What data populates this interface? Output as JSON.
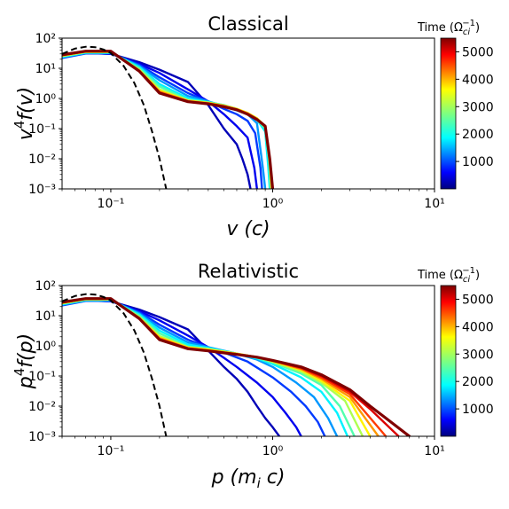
{
  "chart_data": [
    {
      "type": "line",
      "title": "Classical",
      "xlabel": "v (c)",
      "ylabel": "v⁴f(v)",
      "xscale": "log",
      "yscale": "log",
      "xlim": [
        0.05,
        10
      ],
      "ylim": [
        0.001,
        100
      ],
      "x_ticks": [
        0.1,
        1,
        10
      ],
      "x_tick_labels": [
        "10⁻¹",
        "10⁰",
        "10¹"
      ],
      "y_ticks": [
        0.001,
        0.01,
        0.1,
        1,
        10,
        100
      ],
      "y_tick_labels": [
        "10⁻³",
        "10⁻²",
        "10⁻¹",
        "10⁰",
        "10¹",
        "10²"
      ],
      "grid": false,
      "colorbar": {
        "label": "Time (Ω_ci⁻¹)",
        "colormap": "jet",
        "range": [
          0,
          5500
        ],
        "ticks": [
          1000,
          2000,
          3000,
          4000,
          5000
        ],
        "tick_labels": [
          "1000",
          "2000",
          "3000",
          "4000",
          "5000"
        ]
      },
      "reference_curve": {
        "style": "dashed",
        "color": "#000000",
        "x": [
          0.05,
          0.06,
          0.07,
          0.08,
          0.09,
          0.1,
          0.12,
          0.14,
          0.16,
          0.18,
          0.2,
          0.22
        ],
        "y": [
          30,
          45,
          52,
          50,
          42,
          32,
          12,
          3.2,
          0.6,
          0.08,
          0.01,
          0.001
        ]
      },
      "series": [
        {
          "time": 300,
          "x": [
            0.05,
            0.07,
            0.1,
            0.15,
            0.2,
            0.3,
            0.4,
            0.5,
            0.6,
            0.65,
            0.7,
            0.73
          ],
          "y": [
            25,
            33,
            30,
            16,
            9,
            3.5,
            0.6,
            0.1,
            0.03,
            0.01,
            0.003,
            0.001
          ]
        },
        {
          "time": 600,
          "x": [
            0.05,
            0.07,
            0.1,
            0.15,
            0.2,
            0.3,
            0.4,
            0.5,
            0.6,
            0.7,
            0.77,
            0.8
          ],
          "y": [
            24,
            32,
            30,
            14,
            7,
            2,
            0.8,
            0.3,
            0.12,
            0.05,
            0.005,
            0.001
          ]
        },
        {
          "time": 1000,
          "x": [
            0.05,
            0.07,
            0.1,
            0.15,
            0.2,
            0.3,
            0.4,
            0.5,
            0.6,
            0.7,
            0.78,
            0.84,
            0.86
          ],
          "y": [
            22,
            31,
            31,
            13,
            5,
            1.5,
            0.8,
            0.45,
            0.3,
            0.18,
            0.07,
            0.005,
            0.001
          ]
        },
        {
          "time": 1500,
          "x": [
            0.05,
            0.07,
            0.1,
            0.15,
            0.2,
            0.3,
            0.4,
            0.5,
            0.6,
            0.7,
            0.8,
            0.87,
            0.9
          ],
          "y": [
            23,
            32,
            32,
            12,
            4,
            1.2,
            0.8,
            0.55,
            0.4,
            0.3,
            0.15,
            0.005,
            0.001
          ]
        },
        {
          "time": 2000,
          "x": [
            0.05,
            0.07,
            0.1,
            0.15,
            0.2,
            0.3,
            0.4,
            0.5,
            0.6,
            0.7,
            0.8,
            0.9,
            0.94,
            0.96
          ],
          "y": [
            24,
            33,
            33,
            11,
            3,
            1.0,
            0.75,
            0.6,
            0.45,
            0.32,
            0.2,
            0.08,
            0.005,
            0.001
          ]
        },
        {
          "time": 2500,
          "x": [
            0.05,
            0.07,
            0.1,
            0.15,
            0.2,
            0.3,
            0.4,
            0.5,
            0.6,
            0.7,
            0.8,
            0.9,
            0.95,
            0.97
          ],
          "y": [
            25,
            34,
            34,
            10,
            2.5,
            0.9,
            0.75,
            0.6,
            0.45,
            0.32,
            0.2,
            0.1,
            0.01,
            0.001
          ]
        },
        {
          "time": 3000,
          "x": [
            0.05,
            0.07,
            0.1,
            0.15,
            0.2,
            0.3,
            0.4,
            0.5,
            0.6,
            0.7,
            0.8,
            0.9,
            0.95,
            0.98
          ],
          "y": [
            26,
            35,
            35,
            9,
            2.0,
            0.85,
            0.72,
            0.58,
            0.45,
            0.33,
            0.22,
            0.11,
            0.01,
            0.001
          ]
        },
        {
          "time": 3500,
          "x": [
            0.05,
            0.07,
            0.1,
            0.15,
            0.2,
            0.3,
            0.4,
            0.5,
            0.6,
            0.7,
            0.8,
            0.9,
            0.96,
            0.99
          ],
          "y": [
            26,
            35,
            35,
            8.5,
            1.8,
            0.85,
            0.72,
            0.58,
            0.45,
            0.33,
            0.22,
            0.12,
            0.01,
            0.001
          ]
        },
        {
          "time": 4000,
          "x": [
            0.05,
            0.07,
            0.1,
            0.15,
            0.2,
            0.3,
            0.4,
            0.5,
            0.6,
            0.7,
            0.8,
            0.9,
            0.96,
            0.99
          ],
          "y": [
            27,
            36,
            36,
            8.5,
            1.7,
            0.82,
            0.7,
            0.57,
            0.44,
            0.32,
            0.21,
            0.12,
            0.01,
            0.001
          ]
        },
        {
          "time": 4500,
          "x": [
            0.05,
            0.07,
            0.1,
            0.15,
            0.2,
            0.3,
            0.4,
            0.5,
            0.6,
            0.7,
            0.8,
            0.9,
            0.96,
            1.0
          ],
          "y": [
            27,
            36,
            36,
            8,
            1.6,
            0.8,
            0.68,
            0.55,
            0.43,
            0.31,
            0.2,
            0.12,
            0.01,
            0.001
          ]
        },
        {
          "time": 5000,
          "x": [
            0.05,
            0.07,
            0.1,
            0.15,
            0.2,
            0.3,
            0.4,
            0.5,
            0.6,
            0.7,
            0.8,
            0.9,
            0.96,
            1.0
          ],
          "y": [
            28,
            37,
            37,
            8,
            1.5,
            0.78,
            0.66,
            0.53,
            0.42,
            0.3,
            0.2,
            0.12,
            0.01,
            0.001
          ]
        },
        {
          "time": 5500,
          "x": [
            0.05,
            0.07,
            0.1,
            0.15,
            0.2,
            0.3,
            0.4,
            0.5,
            0.6,
            0.7,
            0.8,
            0.9,
            0.96,
            1.0
          ],
          "y": [
            28,
            37,
            37,
            8,
            1.5,
            0.78,
            0.66,
            0.53,
            0.42,
            0.3,
            0.2,
            0.12,
            0.01,
            0.001
          ]
        }
      ]
    },
    {
      "type": "line",
      "title": "Relativistic",
      "xlabel": "p (m_i c)",
      "ylabel": "p⁴f(p)",
      "xscale": "log",
      "yscale": "log",
      "xlim": [
        0.05,
        10
      ],
      "ylim": [
        0.001,
        100
      ],
      "x_ticks": [
        0.1,
        1,
        10
      ],
      "x_tick_labels": [
        "10⁻¹",
        "10⁰",
        "10¹"
      ],
      "y_ticks": [
        0.001,
        0.01,
        0.1,
        1,
        10,
        100
      ],
      "y_tick_labels": [
        "10⁻³",
        "10⁻²",
        "10⁻¹",
        "10⁰",
        "10¹",
        "10²"
      ],
      "grid": false,
      "colorbar": {
        "label": "Time (Ω_ci⁻¹)",
        "colormap": "jet",
        "range": [
          0,
          5500
        ],
        "ticks": [
          1000,
          2000,
          3000,
          4000,
          5000
        ],
        "tick_labels": [
          "1000",
          "2000",
          "3000",
          "4000",
          "5000"
        ]
      },
      "reference_curve": {
        "style": "dashed",
        "color": "#000000",
        "x": [
          0.05,
          0.06,
          0.07,
          0.08,
          0.09,
          0.1,
          0.12,
          0.14,
          0.16,
          0.18,
          0.2,
          0.22
        ],
        "y": [
          30,
          45,
          52,
          50,
          42,
          32,
          12,
          3.2,
          0.6,
          0.08,
          0.01,
          0.001
        ]
      },
      "series": [
        {
          "time": 300,
          "x": [
            0.05,
            0.07,
            0.1,
            0.15,
            0.2,
            0.3,
            0.4,
            0.5,
            0.6,
            0.7,
            0.8,
            0.9,
            1.0,
            1.1
          ],
          "y": [
            25,
            33,
            30,
            16,
            9,
            3.5,
            0.7,
            0.2,
            0.08,
            0.03,
            0.01,
            0.004,
            0.002,
            0.001
          ]
        },
        {
          "time": 600,
          "x": [
            0.05,
            0.07,
            0.1,
            0.15,
            0.2,
            0.3,
            0.4,
            0.5,
            0.6,
            0.8,
            1.0,
            1.2,
            1.4,
            1.5
          ],
          "y": [
            24,
            32,
            30,
            14,
            7,
            2.2,
            0.9,
            0.4,
            0.2,
            0.06,
            0.02,
            0.006,
            0.002,
            0.001
          ]
        },
        {
          "time": 1000,
          "x": [
            0.05,
            0.07,
            0.1,
            0.15,
            0.2,
            0.3,
            0.4,
            0.5,
            0.7,
            1.0,
            1.3,
            1.6,
            1.9,
            2.1
          ],
          "y": [
            22,
            31,
            31,
            13,
            5,
            1.6,
            0.9,
            0.6,
            0.3,
            0.09,
            0.03,
            0.01,
            0.003,
            0.001
          ]
        },
        {
          "time": 1500,
          "x": [
            0.05,
            0.07,
            0.1,
            0.15,
            0.2,
            0.3,
            0.4,
            0.6,
            0.8,
            1.0,
            1.4,
            1.8,
            2.2,
            2.5
          ],
          "y": [
            23,
            32,
            32,
            12,
            4,
            1.3,
            0.9,
            0.55,
            0.35,
            0.2,
            0.06,
            0.02,
            0.004,
            0.001
          ]
        },
        {
          "time": 2000,
          "x": [
            0.05,
            0.07,
            0.1,
            0.15,
            0.2,
            0.3,
            0.4,
            0.6,
            0.8,
            1.0,
            1.5,
            2.0,
            2.5,
            2.9
          ],
          "y": [
            24,
            33,
            33,
            11,
            3.2,
            1.1,
            0.85,
            0.55,
            0.38,
            0.25,
            0.09,
            0.03,
            0.006,
            0.001
          ]
        },
        {
          "time": 2500,
          "x": [
            0.05,
            0.07,
            0.1,
            0.15,
            0.2,
            0.3,
            0.4,
            0.6,
            0.8,
            1.0,
            1.5,
            2.0,
            2.6,
            3.2
          ],
          "y": [
            25,
            34,
            34,
            10,
            2.6,
            0.95,
            0.8,
            0.55,
            0.4,
            0.28,
            0.12,
            0.05,
            0.01,
            0.001
          ]
        },
        {
          "time": 3000,
          "x": [
            0.05,
            0.07,
            0.1,
            0.15,
            0.2,
            0.3,
            0.4,
            0.6,
            0.8,
            1.0,
            1.5,
            2.0,
            2.8,
            3.6
          ],
          "y": [
            26,
            35,
            35,
            9,
            2.1,
            0.9,
            0.78,
            0.55,
            0.42,
            0.3,
            0.14,
            0.06,
            0.015,
            0.001
          ]
        },
        {
          "time": 3500,
          "x": [
            0.05,
            0.07,
            0.1,
            0.15,
            0.2,
            0.3,
            0.4,
            0.6,
            0.8,
            1.0,
            1.5,
            2.0,
            3.0,
            4.0
          ],
          "y": [
            26,
            35,
            35,
            8.5,
            1.9,
            0.88,
            0.75,
            0.55,
            0.42,
            0.31,
            0.16,
            0.07,
            0.015,
            0.001
          ]
        },
        {
          "time": 4000,
          "x": [
            0.05,
            0.07,
            0.1,
            0.15,
            0.2,
            0.3,
            0.4,
            0.6,
            0.8,
            1.0,
            1.5,
            2.0,
            3.0,
            4.5
          ],
          "y": [
            27,
            36,
            36,
            8.5,
            1.8,
            0.85,
            0.72,
            0.54,
            0.42,
            0.32,
            0.17,
            0.08,
            0.02,
            0.001
          ]
        },
        {
          "time": 4500,
          "x": [
            0.05,
            0.07,
            0.1,
            0.15,
            0.2,
            0.3,
            0.4,
            0.6,
            0.8,
            1.0,
            1.5,
            2.0,
            3.0,
            5.0
          ],
          "y": [
            27,
            36,
            36,
            8,
            1.7,
            0.82,
            0.7,
            0.53,
            0.42,
            0.32,
            0.18,
            0.09,
            0.025,
            0.001
          ]
        },
        {
          "time": 5000,
          "x": [
            0.05,
            0.07,
            0.1,
            0.15,
            0.2,
            0.3,
            0.4,
            0.6,
            0.8,
            1.0,
            1.5,
            2.0,
            3.0,
            4.0,
            6.0
          ],
          "y": [
            28,
            37,
            37,
            8,
            1.6,
            0.8,
            0.68,
            0.52,
            0.42,
            0.33,
            0.19,
            0.1,
            0.03,
            0.008,
            0.001
          ]
        },
        {
          "time": 5500,
          "x": [
            0.05,
            0.07,
            0.1,
            0.15,
            0.2,
            0.3,
            0.4,
            0.6,
            0.8,
            1.0,
            1.5,
            2.0,
            3.0,
            4.0,
            5.0,
            7.0
          ],
          "y": [
            28,
            37,
            37,
            8,
            1.6,
            0.8,
            0.68,
            0.52,
            0.42,
            0.33,
            0.2,
            0.11,
            0.035,
            0.01,
            0.004,
            0.001
          ]
        }
      ]
    }
  ]
}
